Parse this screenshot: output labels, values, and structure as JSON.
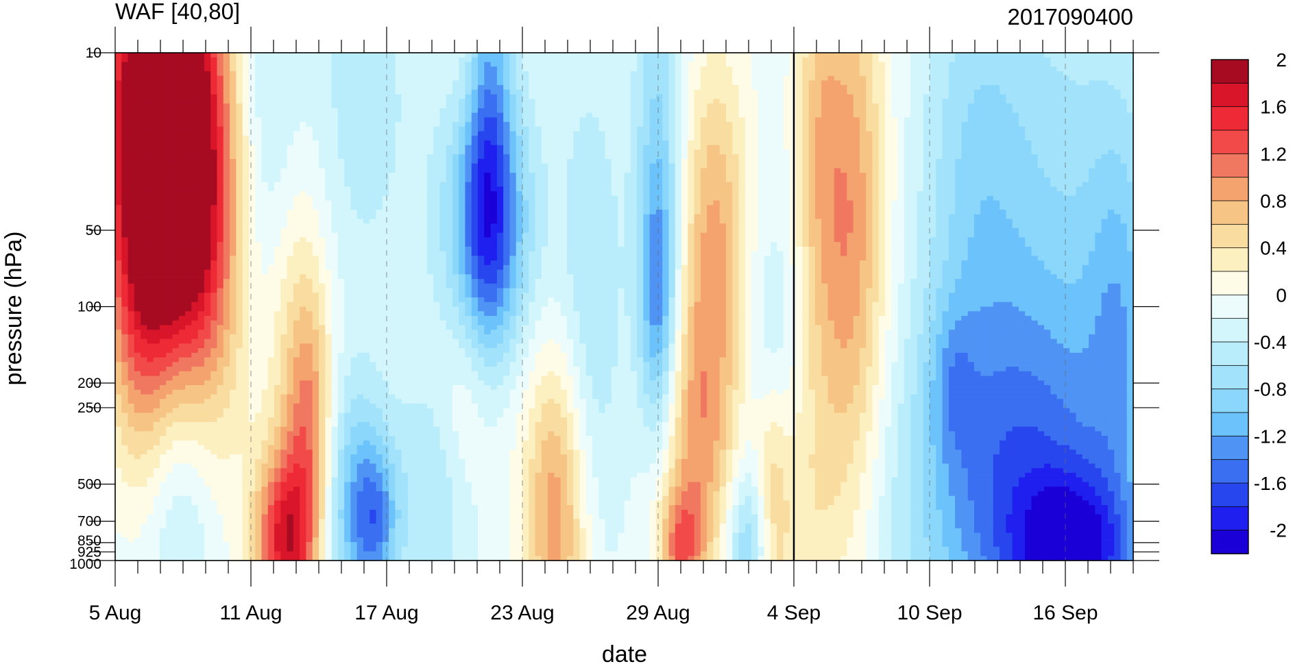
{
  "chart_data": {
    "type": "heatmap",
    "title": "WAF [40,80]",
    "subtitle": "2017090400",
    "xlabel": "date",
    "ylabel": "pressure (hPa)",
    "x_tick_labels": [
      "5 Aug",
      "11 Aug",
      "17 Aug",
      "23 Aug",
      "29 Aug",
      "4 Sep",
      "10 Sep",
      "16 Sep"
    ],
    "x_tick_days": [
      0,
      6,
      12,
      18,
      24,
      30,
      36,
      42
    ],
    "x_range_days": [
      0,
      45
    ],
    "y_tick_labels": [
      "10",
      "50",
      "100",
      "200",
      "250",
      "500",
      "700",
      "850",
      "925",
      "1000"
    ],
    "y_ticks": [
      10,
      50,
      100,
      200,
      250,
      500,
      700,
      850,
      925,
      1000
    ],
    "y_range": [
      10,
      1000
    ],
    "y_scale": "log",
    "y_reversed": true,
    "marker_line_label": "4 Sep",
    "colorbar": {
      "levels": [
        -2.2,
        -2,
        -1.8,
        -1.6,
        -1.4,
        -1.2,
        -1,
        -0.8,
        -0.6,
        -0.4,
        -0.2,
        0,
        0.2,
        0.4,
        0.6,
        0.8,
        1,
        1.2,
        1.4,
        1.6,
        1.8,
        2,
        2.2
      ],
      "labels": [
        "-2",
        "-1.6",
        "-1.2",
        "-0.8",
        "-0.4",
        "0",
        "0.4",
        "0.8",
        "1.2",
        "1.6",
        "2"
      ],
      "label_values": [
        -2,
        -1.6,
        -1.2,
        -0.8,
        -0.4,
        0,
        0.4,
        0.8,
        1.2,
        1.6,
        2
      ],
      "colors": [
        "#1a00d6",
        "#1f1ff0",
        "#2846ee",
        "#3b6ff2",
        "#4f93f5",
        "#6cc2fa",
        "#8ad7fb",
        "#a2e3fb",
        "#baedfb",
        "#d2f6fb",
        "#ecfcfc",
        "#fefbe7",
        "#fcefc0",
        "#f9dc9f",
        "#f6c585",
        "#f4a26e",
        "#f07860",
        "#f14a48",
        "#ee2a36",
        "#d9152a",
        "#a70b22"
      ]
    },
    "blobs": [
      {
        "d": 2,
        "p": 18,
        "v": 2.8,
        "sd": 2.6,
        "sl": 0.9
      },
      {
        "d": 3.5,
        "p": 70,
        "v": 1.2,
        "sd": 2.2,
        "sl": 0.9
      },
      {
        "d": 1,
        "p": 120,
        "v": 0.5,
        "sd": 1.3,
        "sl": 0.6
      },
      {
        "d": 3,
        "p": 420,
        "v": -0.7,
        "sd": 1.6,
        "sl": 0.7
      },
      {
        "d": 7,
        "p": 20,
        "v": -0.55,
        "sd": 1.8,
        "sl": 0.9
      },
      {
        "d": 7.5,
        "p": 850,
        "v": 1.5,
        "sd": 1.4,
        "sl": 0.35
      },
      {
        "d": 8,
        "p": 150,
        "v": 0.7,
        "sd": 1.4,
        "sl": 1.1
      },
      {
        "d": 8.7,
        "p": 300,
        "v": 0.8,
        "sd": 1.0,
        "sl": 0.5
      },
      {
        "d": 10.5,
        "p": 600,
        "v": -0.9,
        "sd": 1.7,
        "sl": 0.5
      },
      {
        "d": 11.5,
        "p": 700,
        "v": -0.8,
        "sd": 1.0,
        "sl": 0.3
      },
      {
        "d": 11,
        "p": 15,
        "v": -0.4,
        "sd": 2.4,
        "sl": 0.8
      },
      {
        "d": 16.5,
        "p": 50,
        "v": -1.3,
        "sd": 2.0,
        "sl": 0.6
      },
      {
        "d": 16.5,
        "p": 18,
        "v": -0.8,
        "sd": 1.0,
        "sl": 1.0
      },
      {
        "d": 15.6,
        "p": 12,
        "v": 0.2,
        "sd": 0.9,
        "sl": 0.3
      },
      {
        "d": 15.8,
        "p": 200,
        "v": 0.5,
        "sd": 2.0,
        "sl": 0.4
      },
      {
        "d": 19.5,
        "p": 650,
        "v": 1.1,
        "sd": 1.4,
        "sl": 0.65
      },
      {
        "d": 14,
        "p": 500,
        "v": -0.5,
        "sd": 1.5,
        "sl": 0.6
      },
      {
        "d": 21,
        "p": 100,
        "v": -0.5,
        "sd": 1.5,
        "sl": 1.0
      },
      {
        "d": 24,
        "p": 25,
        "v": -0.7,
        "sd": 1.1,
        "sl": 0.9
      },
      {
        "d": 24,
        "p": 100,
        "v": -0.9,
        "sd": 0.8,
        "sl": 0.5
      },
      {
        "d": 26.5,
        "p": 50,
        "v": 0.9,
        "sd": 1.5,
        "sl": 0.7
      },
      {
        "d": 25.8,
        "p": 350,
        "v": 0.9,
        "sd": 1.6,
        "sl": 0.6
      },
      {
        "d": 25,
        "p": 900,
        "v": 1.0,
        "sd": 1.0,
        "sl": 0.25
      },
      {
        "d": 29,
        "p": 450,
        "v": 0.7,
        "sd": 0.8,
        "sl": 0.65
      },
      {
        "d": 28,
        "p": 850,
        "v": -0.8,
        "sd": 1.0,
        "sl": 0.3
      },
      {
        "d": 29,
        "p": 160,
        "v": -0.6,
        "sd": 1.0,
        "sl": 0.5
      },
      {
        "d": 32.5,
        "p": 50,
        "v": 1.1,
        "sd": 1.6,
        "sl": 1.1
      },
      {
        "d": 31,
        "p": 20,
        "v": 0.5,
        "sd": 1.0,
        "sl": 0.9
      },
      {
        "d": 30.5,
        "p": 700,
        "v": 0.4,
        "sd": 1.8,
        "sl": 0.6
      },
      {
        "d": 38,
        "p": 30,
        "v": -0.6,
        "sd": 2.5,
        "sl": 1.0
      },
      {
        "d": 42,
        "p": 40,
        "v": -0.5,
        "sd": 3.5,
        "sl": 1.2
      },
      {
        "d": 40,
        "p": 600,
        "v": -1.3,
        "sd": 5.0,
        "sl": 0.8
      },
      {
        "d": 42.5,
        "p": 950,
        "v": -1.2,
        "sd": 2.5,
        "sl": 0.3
      },
      {
        "d": 44.5,
        "p": 100,
        "v": -0.6,
        "sd": 1.5,
        "sl": 0.8
      },
      {
        "d": 37,
        "p": 200,
        "v": -0.4,
        "sd": 1.0,
        "sl": 0.3
      }
    ]
  }
}
